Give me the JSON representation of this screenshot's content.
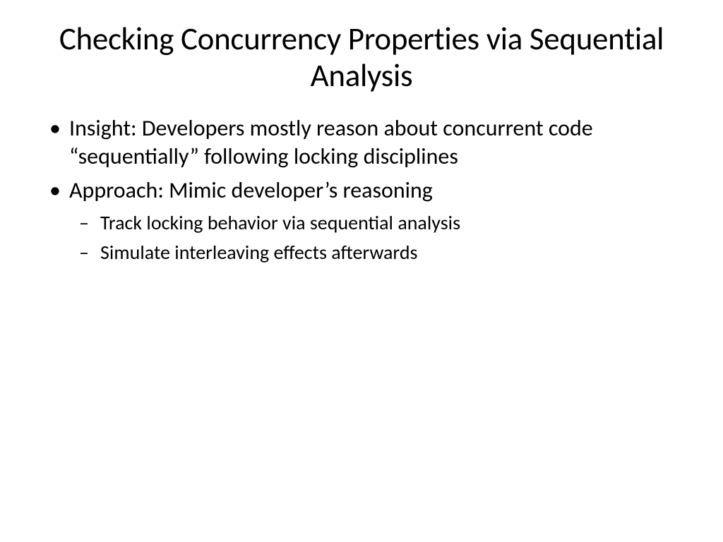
{
  "slide": {
    "title": "Checking Concurrency Properties via Sequential Analysis",
    "bullets": {
      "level1": [
        "Insight: Developers mostly reason about concurrent code “sequentially” following locking disciplines",
        "Approach: Mimic developer’s reasoning"
      ],
      "level2": [
        "Track locking behavior via sequential analysis",
        "Simulate interleaving effects afterwards"
      ]
    },
    "styling": {
      "background_color": "#ffffff",
      "text_color": "#000000",
      "font_family": "Calibri",
      "title_fontsize": 45,
      "title_weight": 400,
      "title_align": "center",
      "body_l1_fontsize": 32,
      "body_l2_fontsize": 28,
      "bullet_l1_marker": "•",
      "bullet_l2_marker": "–"
    }
  }
}
